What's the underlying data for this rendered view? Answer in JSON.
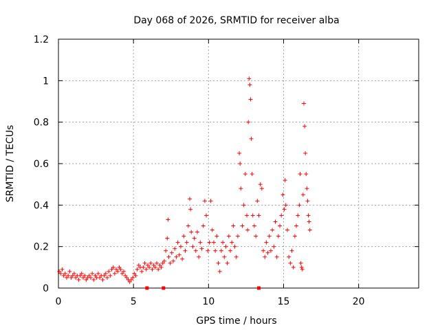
{
  "chart_data": {
    "type": "scatter",
    "title": "Day 068 of 2026, SRMTID for receiver alba",
    "xlabel": "GPS time / hours",
    "ylabel": "SRMTID / TECUs",
    "xlim": [
      0,
      24
    ],
    "ylim": [
      0,
      1.2
    ],
    "x_ticks": [
      0,
      5,
      10,
      15,
      20
    ],
    "x_tick_labels": [
      "0",
      "5",
      "10",
      "15",
      "20"
    ],
    "y_ticks": [
      0,
      0.2,
      0.4,
      0.6,
      0.8,
      1.0,
      1.2
    ],
    "y_tick_labels": [
      "0",
      "0.2",
      "0.4",
      "0.6",
      "0.8",
      "1",
      "1.2"
    ],
    "grid": true,
    "marker": "plus",
    "color": "#ff0000",
    "series": [
      {
        "name": "SRMTID",
        "points": [
          [
            0.05,
            0.08
          ],
          [
            0.15,
            0.07
          ],
          [
            0.25,
            0.09
          ],
          [
            0.35,
            0.06
          ],
          [
            0.45,
            0.07
          ],
          [
            0.55,
            0.05
          ],
          [
            0.65,
            0.06
          ],
          [
            0.75,
            0.08
          ],
          [
            0.85,
            0.05
          ],
          [
            0.95,
            0.06
          ],
          [
            1.05,
            0.07
          ],
          [
            1.15,
            0.05
          ],
          [
            1.25,
            0.06
          ],
          [
            1.35,
            0.04
          ],
          [
            1.45,
            0.06
          ],
          [
            1.55,
            0.07
          ],
          [
            1.65,
            0.05
          ],
          [
            1.75,
            0.06
          ],
          [
            1.85,
            0.04
          ],
          [
            1.95,
            0.05
          ],
          [
            2.05,
            0.06
          ],
          [
            2.15,
            0.05
          ],
          [
            2.25,
            0.07
          ],
          [
            2.35,
            0.04
          ],
          [
            2.45,
            0.06
          ],
          [
            2.55,
            0.05
          ],
          [
            2.65,
            0.07
          ],
          [
            2.75,
            0.05
          ],
          [
            2.85,
            0.06
          ],
          [
            2.95,
            0.04
          ],
          [
            3.05,
            0.06
          ],
          [
            3.15,
            0.07
          ],
          [
            3.25,
            0.05
          ],
          [
            3.35,
            0.08
          ],
          [
            3.45,
            0.06
          ],
          [
            3.55,
            0.09
          ],
          [
            3.65,
            0.1
          ],
          [
            3.75,
            0.07
          ],
          [
            3.85,
            0.09
          ],
          [
            3.95,
            0.08
          ],
          [
            4.05,
            0.1
          ],
          [
            4.15,
            0.09
          ],
          [
            4.25,
            0.07
          ],
          [
            4.35,
            0.08
          ],
          [
            4.45,
            0.06
          ],
          [
            4.55,
            0.05
          ],
          [
            4.65,
            0.04
          ],
          [
            4.75,
            0.03
          ],
          [
            4.85,
            0.04
          ],
          [
            4.95,
            0.05
          ],
          [
            5.05,
            0.07
          ],
          [
            5.15,
            0.06
          ],
          [
            5.25,
            0.09
          ],
          [
            5.35,
            0.11
          ],
          [
            5.45,
            0.1
          ],
          [
            5.55,
            0.08
          ],
          [
            5.65,
            0.1
          ],
          [
            5.75,
            0.12
          ],
          [
            5.85,
            0.09
          ],
          [
            5.95,
            0.11
          ],
          [
            6.05,
            0.1
          ],
          [
            6.15,
            0.12
          ],
          [
            6.25,
            0.09
          ],
          [
            6.35,
            0.11
          ],
          [
            6.45,
            0.1
          ],
          [
            6.55,
            0.12
          ],
          [
            6.65,
            0.09
          ],
          [
            6.75,
            0.11
          ],
          [
            6.85,
            0.1
          ],
          [
            6.95,
            0.12
          ],
          [
            7.05,
            0.13
          ],
          [
            7.15,
            0.18
          ],
          [
            7.25,
            0.24
          ],
          [
            7.3,
            0.33
          ],
          [
            7.35,
            0.15
          ],
          [
            7.45,
            0.12
          ],
          [
            7.55,
            0.17
          ],
          [
            7.65,
            0.13
          ],
          [
            7.75,
            0.19
          ],
          [
            7.85,
            0.15
          ],
          [
            7.95,
            0.22
          ],
          [
            8.05,
            0.16
          ],
          [
            8.15,
            0.2
          ],
          [
            8.25,
            0.14
          ],
          [
            8.35,
            0.25
          ],
          [
            8.45,
            0.18
          ],
          [
            8.55,
            0.22
          ],
          [
            8.65,
            0.3
          ],
          [
            8.75,
            0.43
          ],
          [
            8.8,
            0.38
          ],
          [
            8.85,
            0.27
          ],
          [
            8.95,
            0.2
          ],
          [
            9.05,
            0.24
          ],
          [
            9.15,
            0.18
          ],
          [
            9.25,
            0.27
          ],
          [
            9.35,
            0.15
          ],
          [
            9.45,
            0.22
          ],
          [
            9.55,
            0.19
          ],
          [
            9.65,
            0.3
          ],
          [
            9.75,
            0.42
          ],
          [
            9.85,
            0.35
          ],
          [
            9.95,
            0.18
          ],
          [
            10.05,
            0.22
          ],
          [
            10.15,
            0.42
          ],
          [
            10.25,
            0.28
          ],
          [
            10.35,
            0.22
          ],
          [
            10.45,
            0.18
          ],
          [
            10.55,
            0.25
          ],
          [
            10.65,
            0.12
          ],
          [
            10.75,
            0.08
          ],
          [
            10.85,
            0.18
          ],
          [
            10.95,
            0.22
          ],
          [
            11.05,
            0.15
          ],
          [
            11.15,
            0.2
          ],
          [
            11.25,
            0.12
          ],
          [
            11.35,
            0.25
          ],
          [
            11.45,
            0.18
          ],
          [
            11.55,
            0.22
          ],
          [
            11.65,
            0.3
          ],
          [
            11.75,
            0.2
          ],
          [
            11.85,
            0.15
          ],
          [
            11.95,
            0.25
          ],
          [
            12.05,
            0.65
          ],
          [
            12.1,
            0.6
          ],
          [
            12.15,
            0.48
          ],
          [
            12.25,
            0.3
          ],
          [
            12.35,
            0.4
          ],
          [
            12.45,
            0.55
          ],
          [
            12.55,
            0.35
          ],
          [
            12.6,
            0.28
          ],
          [
            12.65,
            0.8
          ],
          [
            12.7,
            1.01
          ],
          [
            12.75,
            0.98
          ],
          [
            12.8,
            0.91
          ],
          [
            12.85,
            0.72
          ],
          [
            12.9,
            0.55
          ],
          [
            12.95,
            0.35
          ],
          [
            13.05,
            0.3
          ],
          [
            13.15,
            0.25
          ],
          [
            13.25,
            0.42
          ],
          [
            13.35,
            0.35
          ],
          [
            13.45,
            0.5
          ],
          [
            13.55,
            0.48
          ],
          [
            13.65,
            0.18
          ],
          [
            13.75,
            0.15
          ],
          [
            13.85,
            0.22
          ],
          [
            13.95,
            0.17
          ],
          [
            14.05,
            0.25
          ],
          [
            14.15,
            0.18
          ],
          [
            14.25,
            0.28
          ],
          [
            14.35,
            0.2
          ],
          [
            14.45,
            0.32
          ],
          [
            14.55,
            0.15
          ],
          [
            14.65,
            0.25
          ],
          [
            14.75,
            0.3
          ],
          [
            14.85,
            0.35
          ],
          [
            14.95,
            0.45
          ],
          [
            15.05,
            0.38
          ],
          [
            15.1,
            0.52
          ],
          [
            15.15,
            0.4
          ],
          [
            15.25,
            0.28
          ],
          [
            15.35,
            0.15
          ],
          [
            15.45,
            0.12
          ],
          [
            15.55,
            0.18
          ],
          [
            15.65,
            0.1
          ],
          [
            15.75,
            0.25
          ],
          [
            15.85,
            0.3
          ],
          [
            15.95,
            0.35
          ],
          [
            16.05,
            0.4
          ],
          [
            16.1,
            0.55
          ],
          [
            16.15,
            0.12
          ],
          [
            16.2,
            0.1
          ],
          [
            16.25,
            0.09
          ],
          [
            16.3,
            0.45
          ],
          [
            16.35,
            0.89
          ],
          [
            16.4,
            0.78
          ],
          [
            16.45,
            0.65
          ],
          [
            16.5,
            0.55
          ],
          [
            16.55,
            0.48
          ],
          [
            16.6,
            0.42
          ],
          [
            16.65,
            0.35
          ],
          [
            16.7,
            0.32
          ],
          [
            16.75,
            0.28
          ]
        ]
      }
    ],
    "flag_points_x": [
      5.9,
      7.0,
      13.35
    ]
  }
}
